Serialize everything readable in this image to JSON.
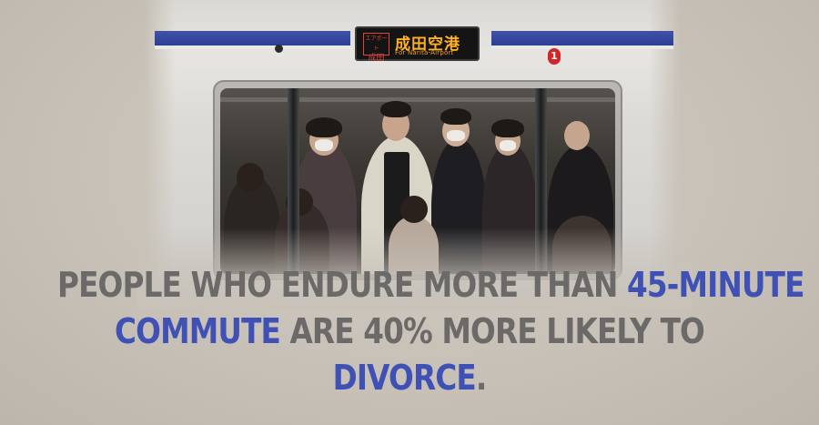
{
  "sign": {
    "destination": "成田空港",
    "subtitle": "For Narita-Airport",
    "tag_line1": "エアポート",
    "tag_line2": "成田"
  },
  "car_number": "1",
  "caption": {
    "line1_gray": "PEOPLE WHO ENDURE MORE THAN ",
    "line1_blue": "45-MINUTE",
    "line2_blue": "COMMUTE",
    "line2_gray": " ARE 40% MORE LIKELY TO",
    "line3_blue": "DIVORCE",
    "line3_gray": "."
  },
  "colors": {
    "caption_gray": "#6b6a68",
    "caption_blue": "#3f51b5",
    "stripe_blue": "#2d3f94",
    "sign_amber": "#ffb020",
    "background": "#c8c2b9"
  }
}
